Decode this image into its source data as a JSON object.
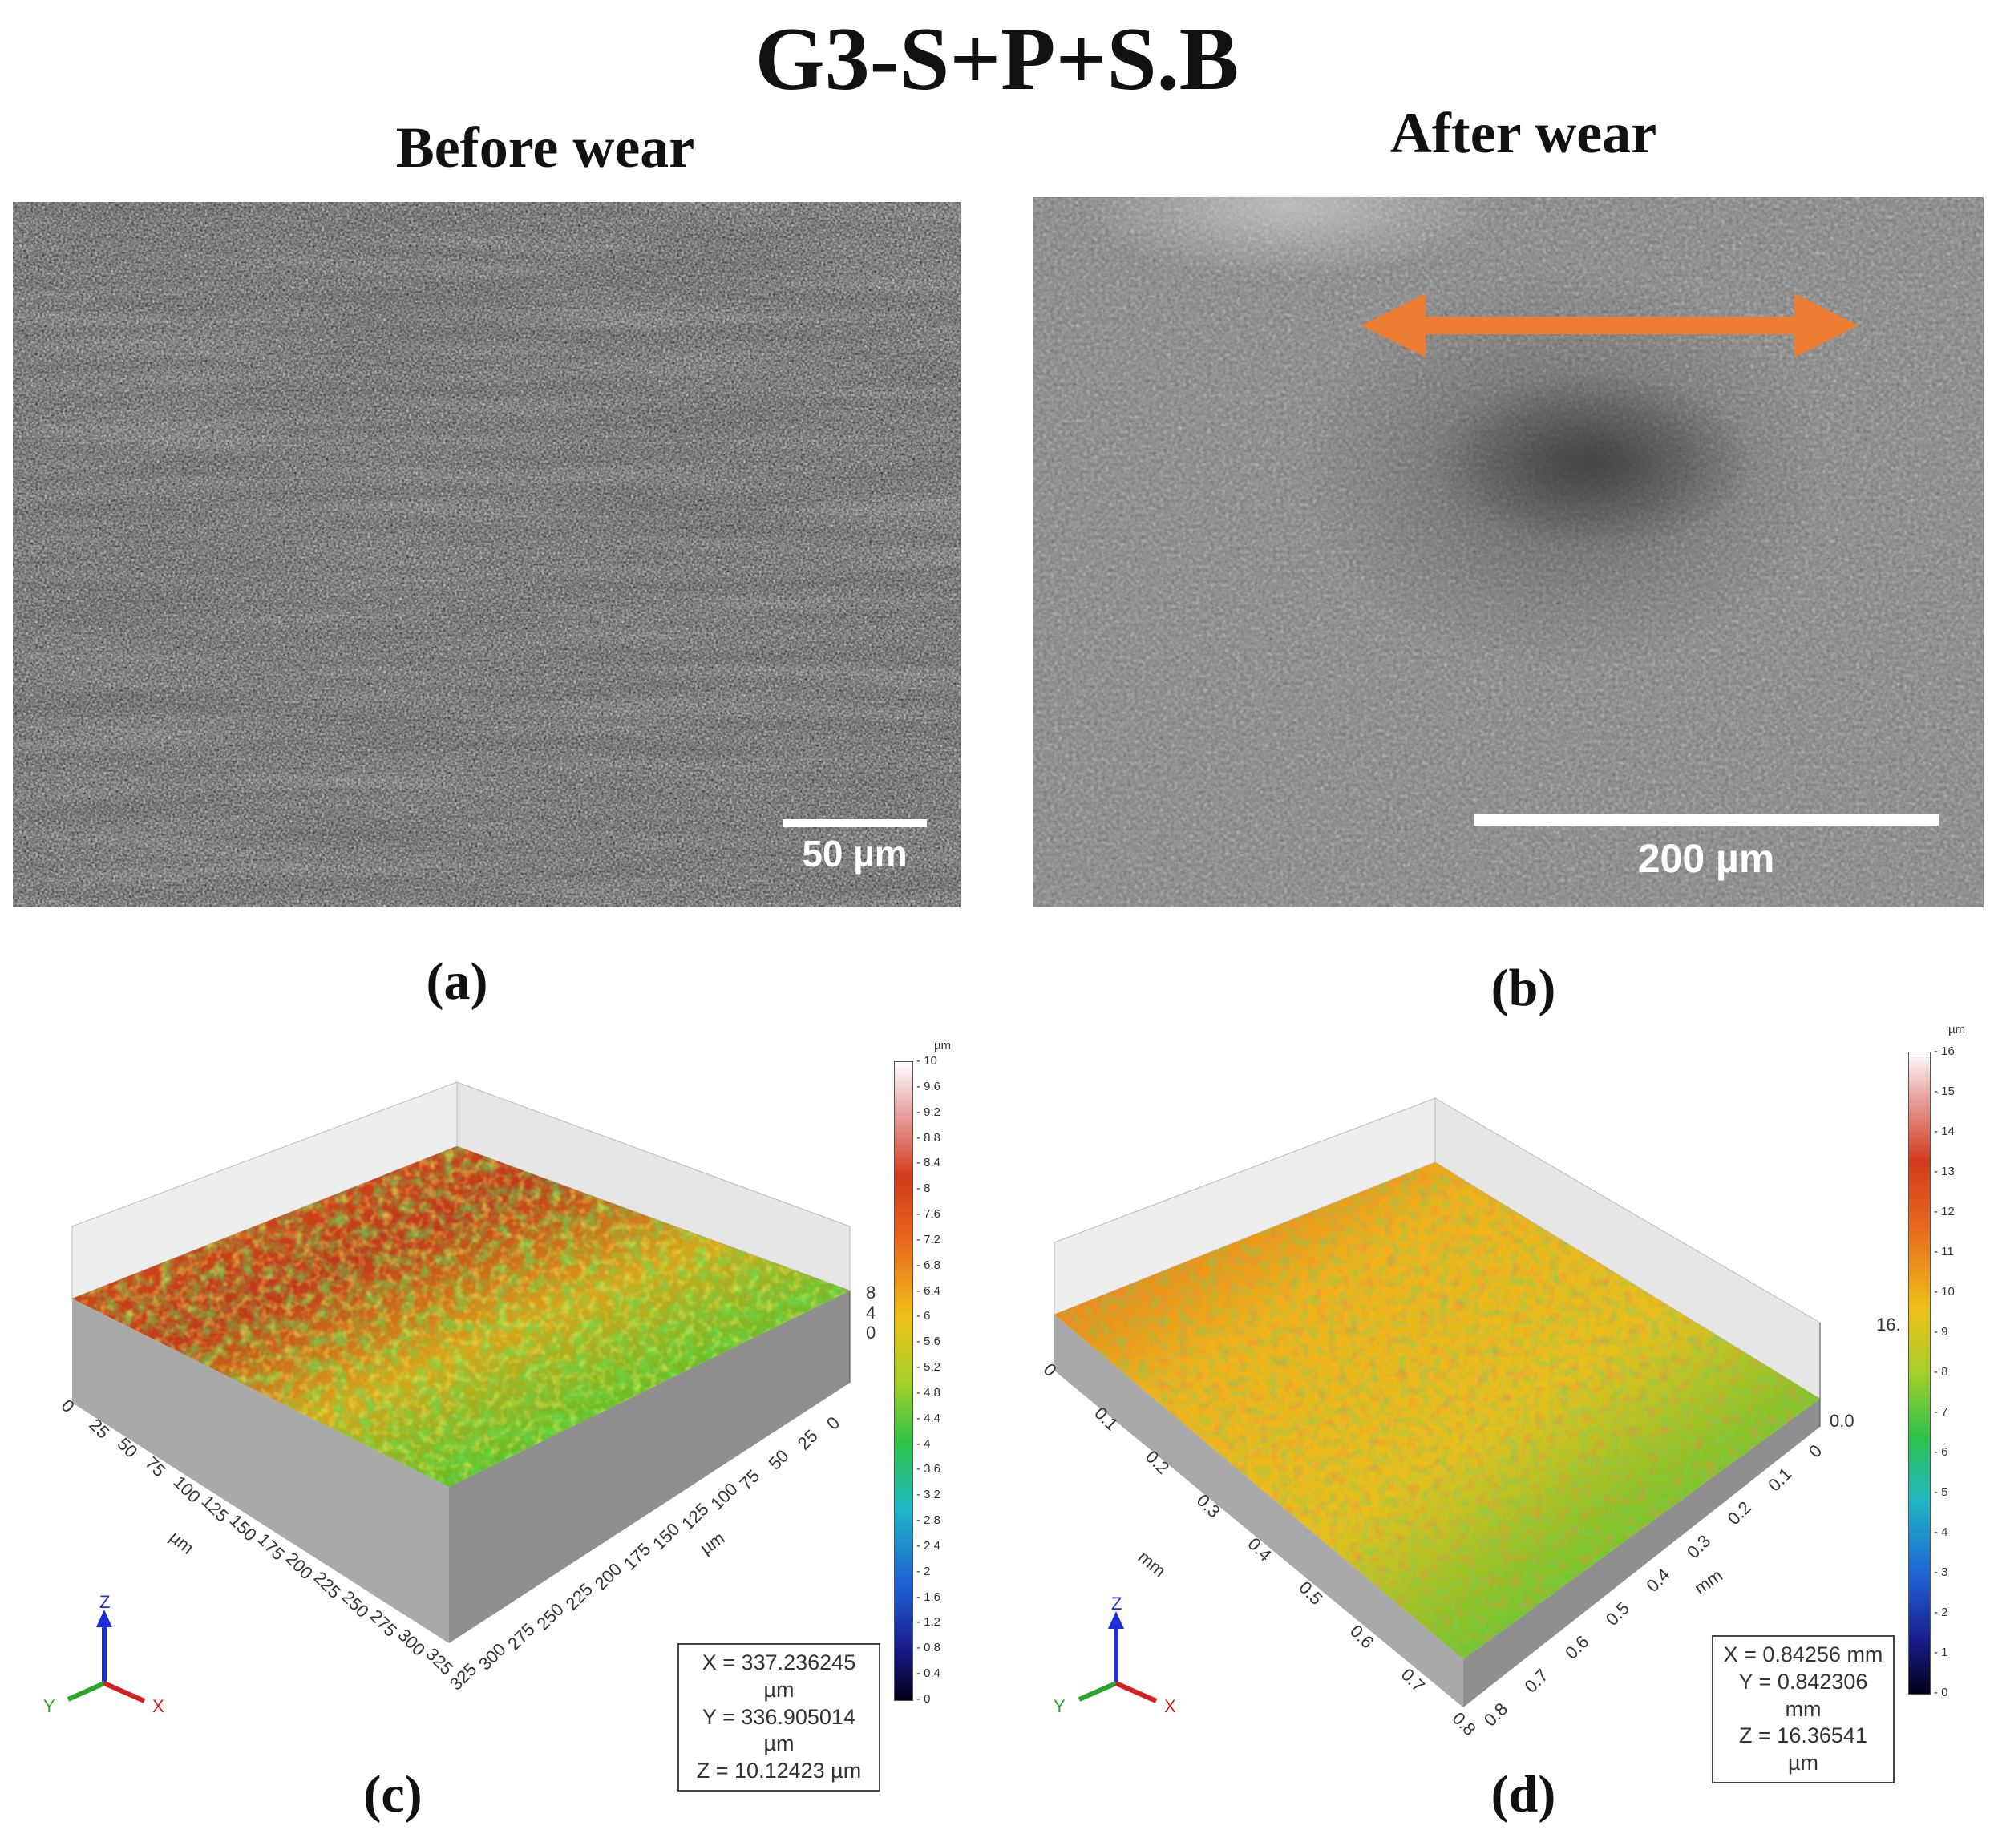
{
  "figure_title": "G3-S+P+S.B",
  "panels": {
    "a": {
      "header": "Before wear",
      "caption": "(a)",
      "scale_label": "50 µm"
    },
    "b": {
      "header": "After  wear",
      "caption": "(b)",
      "scale_label": "200 µm"
    },
    "c": {
      "caption": "(c)",
      "axis_unit_left": "µm",
      "axis_unit_right": "µm",
      "x_ticks": [
        "0",
        "25",
        "50",
        "75",
        "100",
        "125",
        "150",
        "175",
        "200",
        "225",
        "250",
        "275",
        "300",
        "325"
      ],
      "y_ticks": [
        "0",
        "25",
        "50",
        "75",
        "100",
        "125",
        "150",
        "175",
        "200",
        "225",
        "250",
        "275",
        "300",
        "325"
      ],
      "z_ticks": [
        "0",
        "4",
        "8"
      ],
      "readout": {
        "x": "X = 337.236245 µm",
        "y": "Y = 336.905014 µm",
        "z": "Z = 10.12423 µm"
      },
      "colorbar_unit": "µm",
      "colorbar_ticks": [
        "10",
        "9.6",
        "9.2",
        "8.8",
        "8.4",
        "8",
        "7.6",
        "7.2",
        "6.8",
        "6.4",
        "6",
        "5.6",
        "5.2",
        "4.8",
        "4.4",
        "4",
        "3.6",
        "3.2",
        "2.8",
        "2.4",
        "2",
        "1.6",
        "1.2",
        "0.8",
        "0.4",
        "0"
      ]
    },
    "d": {
      "caption": "(d)",
      "axis_unit_left": "mm",
      "axis_unit_right": "mm",
      "x_ticks": [
        "0",
        "0.1",
        "0.2",
        "0.3",
        "0.4",
        "0.5",
        "0.6",
        "0.7",
        "0.8"
      ],
      "y_ticks": [
        "0",
        "0.1",
        "0.2",
        "0.3",
        "0.4",
        "0.5",
        "0.6",
        "0.7",
        "0.8"
      ],
      "z_ticks": [
        "0.0",
        "16."
      ],
      "readout": {
        "x": "X = 0.84256 mm",
        "y": "Y = 0.842306 mm",
        "z": "Z = 16.36541 µm"
      },
      "colorbar_unit": "µm",
      "colorbar_ticks": [
        "16",
        "15",
        "14",
        "13",
        "12",
        "11",
        "10",
        "9",
        "8",
        "7",
        "6",
        "5",
        "4",
        "3",
        "2",
        "1",
        "0"
      ]
    }
  },
  "triad": {
    "x": "X",
    "y": "Y",
    "z": "Z"
  },
  "colors": {
    "arrow": "#ed7d31",
    "text": "#111111"
  }
}
